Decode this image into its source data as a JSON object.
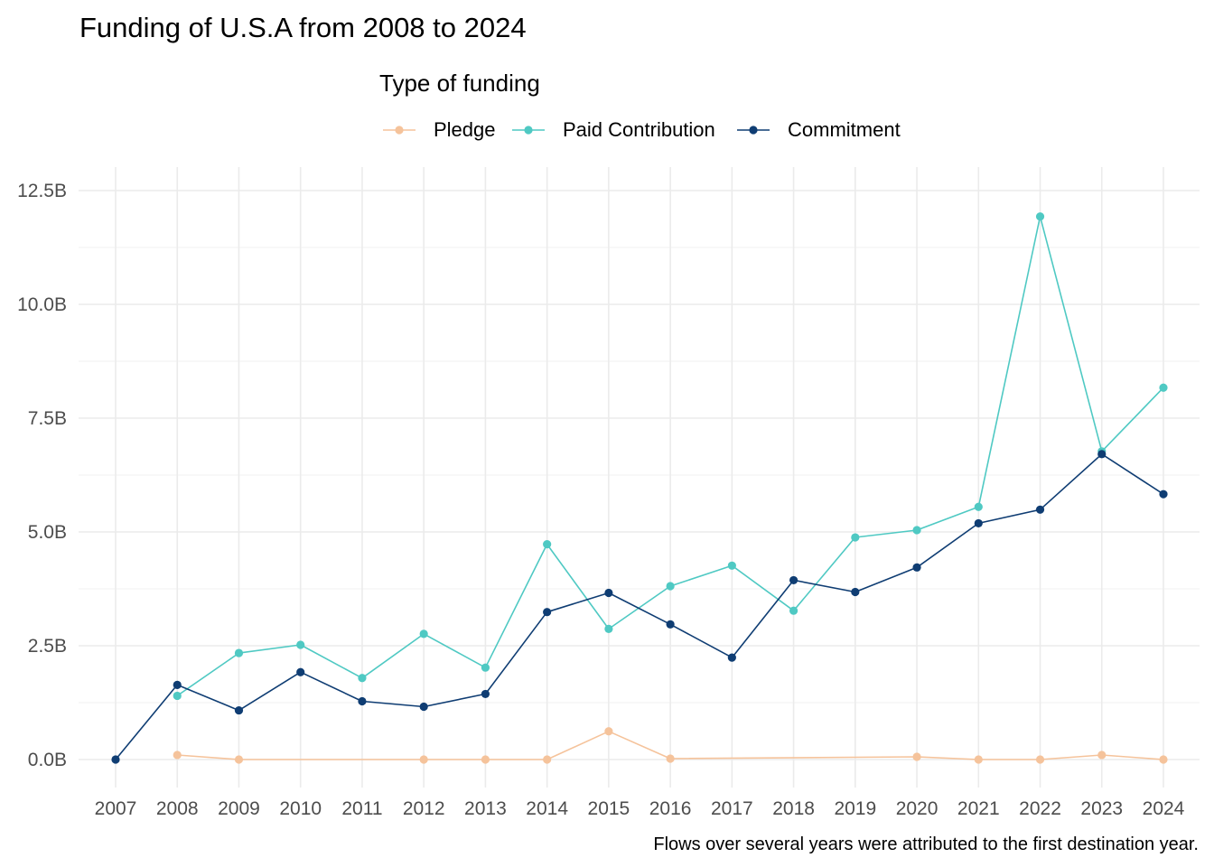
{
  "chart_data": {
    "type": "line",
    "title": "Funding of U.S.A from 2008 to 2024",
    "xlabel": "",
    "ylabel": "",
    "legend_title": "Type of funding",
    "legend_position": "top",
    "caption": "Flows over several years were attributed to the first destination year.",
    "grid": true,
    "x": [
      2007,
      2008,
      2009,
      2010,
      2011,
      2012,
      2013,
      2014,
      2015,
      2016,
      2017,
      2018,
      2019,
      2020,
      2021,
      2022,
      2023,
      2024
    ],
    "xlim": [
      2007,
      2024
    ],
    "ylim": [
      0,
      12.5
    ],
    "y_unit": "B",
    "y_ticks": [
      0,
      2.5,
      5,
      7.5,
      10,
      12.5
    ],
    "y_tick_labels": [
      "0.0B",
      "2.5B",
      "5.0B",
      "7.5B",
      "10.0B",
      "12.5B"
    ],
    "series": [
      {
        "name": "Pledge",
        "color": "#f5c39b",
        "points": [
          [
            2008,
            0.1
          ],
          [
            2009,
            0.0
          ],
          [
            2012,
            0.0
          ],
          [
            2013,
            0.0
          ],
          [
            2014,
            0.0
          ],
          [
            2015,
            0.62
          ],
          [
            2016,
            0.02
          ],
          [
            2020,
            0.06
          ],
          [
            2021,
            0.0
          ],
          [
            2022,
            0.0
          ],
          [
            2023,
            0.1
          ],
          [
            2024,
            0.0
          ]
        ]
      },
      {
        "name": "Paid Contribution",
        "color": "#4fc9c3",
        "points": [
          [
            2008,
            1.4
          ],
          [
            2009,
            2.34
          ],
          [
            2010,
            2.52
          ],
          [
            2011,
            1.79
          ],
          [
            2012,
            2.76
          ],
          [
            2013,
            2.02
          ],
          [
            2014,
            4.73
          ],
          [
            2015,
            2.87
          ],
          [
            2016,
            3.81
          ],
          [
            2017,
            4.26
          ],
          [
            2018,
            3.27
          ],
          [
            2019,
            4.88
          ],
          [
            2020,
            5.04
          ],
          [
            2021,
            5.55
          ],
          [
            2022,
            11.93
          ],
          [
            2023,
            6.77
          ],
          [
            2024,
            8.17
          ]
        ]
      },
      {
        "name": "Commitment",
        "color": "#0f3d73",
        "points": [
          [
            2007,
            0.0
          ],
          [
            2008,
            1.64
          ],
          [
            2009,
            1.08
          ],
          [
            2010,
            1.92
          ],
          [
            2011,
            1.28
          ],
          [
            2012,
            1.16
          ],
          [
            2013,
            1.44
          ],
          [
            2014,
            3.24
          ],
          [
            2015,
            3.66
          ],
          [
            2016,
            2.97
          ],
          [
            2017,
            2.24
          ],
          [
            2018,
            3.94
          ],
          [
            2019,
            3.68
          ],
          [
            2020,
            4.22
          ],
          [
            2021,
            5.19
          ],
          [
            2022,
            5.49
          ],
          [
            2023,
            6.71
          ],
          [
            2024,
            5.83
          ]
        ]
      }
    ]
  }
}
